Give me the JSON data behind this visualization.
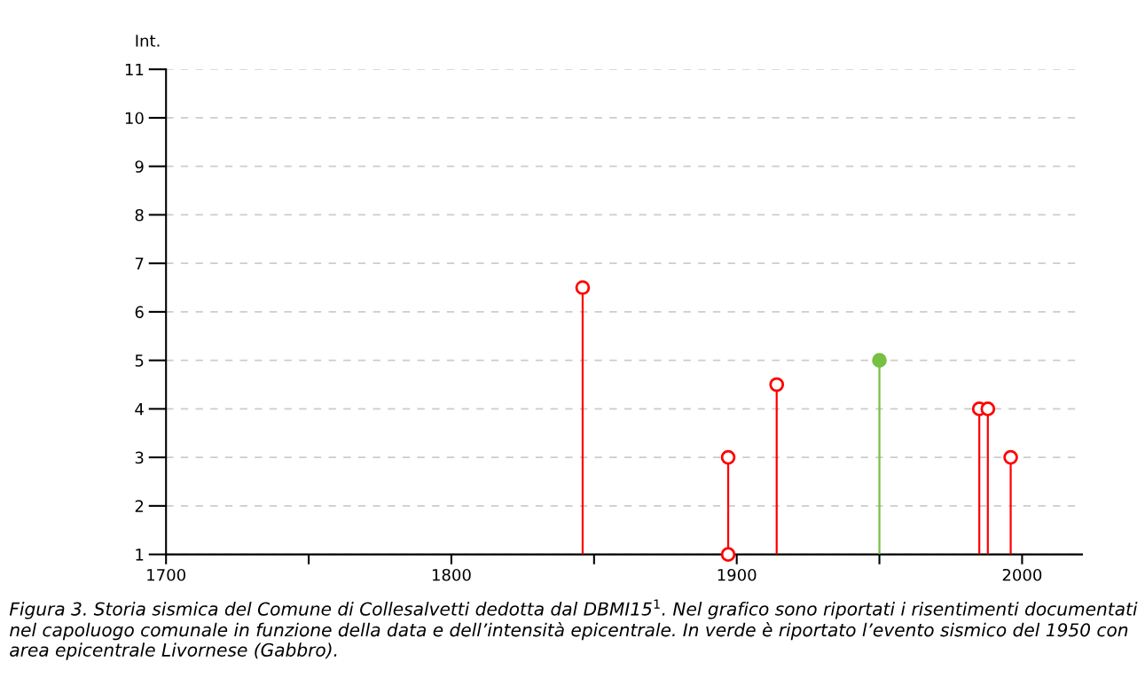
{
  "chart_data": {
    "type": "lollipop",
    "ylabel": "Int.",
    "xlim": [
      1700,
      2021
    ],
    "ylim": [
      1,
      11
    ],
    "xticks": [
      1700,
      {
        "value": 1750,
        "label": null
      },
      1800,
      {
        "value": 1850,
        "label": null
      },
      1900,
      {
        "value": 1950,
        "label": null
      },
      2000
    ],
    "yticks": [
      1,
      2,
      3,
      4,
      5,
      6,
      7,
      8,
      9,
      10,
      11
    ],
    "grid": "y",
    "marker": "circle",
    "legend": false,
    "series": [
      {
        "color": "#ff0000",
        "x": [
          1846,
          1897,
          1897,
          1914,
          1985,
          1988,
          1996
        ],
        "values": [
          6.5,
          3,
          1,
          4.5,
          4,
          4,
          3
        ]
      },
      {
        "color": "#77c043",
        "x": [
          1950
        ],
        "values": [
          5
        ]
      }
    ],
    "annotations": [
      "Figura 3. Storia sismica del Comune di Collesalvetti dedotta dal DBMI15$^{1}$. Nel grafico sono riportati i risentimenti documentati nel capoluogo comunale in funzione della data e dell’intensità epicentrale. In verde è riportato l’evento sismico del 1950 con area epicentrale Livornese (Gabbro)."
    ]
  }
}
